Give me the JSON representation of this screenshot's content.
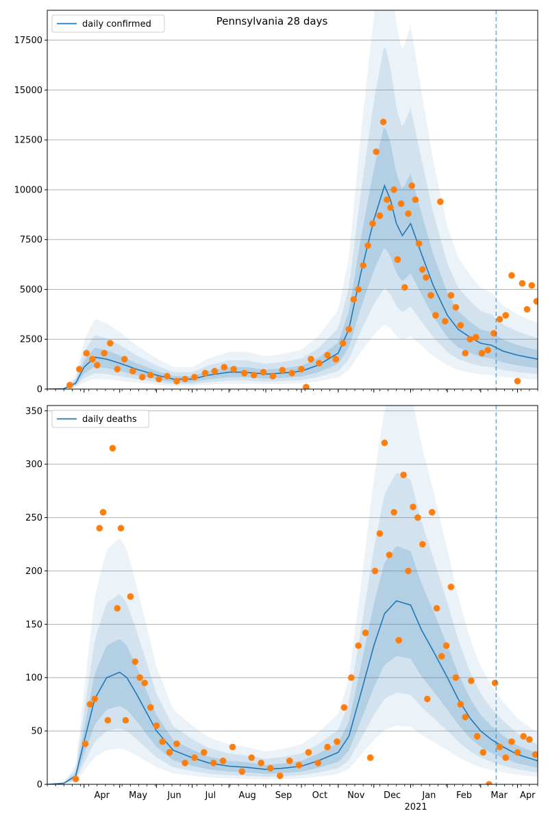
{
  "figure": {
    "title": "Pennsylvania 28 days",
    "year_label": "2021",
    "month_labels": [
      "Apr",
      "May",
      "Jun",
      "Jul",
      "Aug",
      "Sep",
      "Oct",
      "Nov",
      "Dec",
      "Jan",
      "Feb",
      "Mar",
      "Apr"
    ]
  },
  "colors": {
    "line": "#1f77b4",
    "points": "#ff7f0e",
    "band": "#1f77b4",
    "grid": "#b0b0b0",
    "vline": "#1f77b4"
  },
  "chart_data": [
    {
      "type": "line",
      "legend": "daily confirmed",
      "legend_position": "top-left",
      "x_range": [
        "2020-03-01",
        "2021-04-18"
      ],
      "ylim": [
        0,
        19000
      ],
      "yticks": [
        0,
        2500,
        5000,
        7500,
        10000,
        12500,
        15000,
        17500
      ],
      "grid": "y",
      "vline_date": "2021-03-14",
      "line": {
        "x": [
          "2020-03-01",
          "2020-03-15",
          "2020-03-25",
          "2020-04-01",
          "2020-04-10",
          "2020-04-20",
          "2020-05-01",
          "2020-05-15",
          "2020-06-01",
          "2020-06-15",
          "2020-07-01",
          "2020-07-15",
          "2020-08-01",
          "2020-08-15",
          "2020-09-01",
          "2020-09-15",
          "2020-10-01",
          "2020-10-15",
          "2020-11-01",
          "2020-11-10",
          "2020-11-20",
          "2020-12-01",
          "2020-12-10",
          "2020-12-15",
          "2020-12-20",
          "2020-12-25",
          "2021-01-01",
          "2021-01-10",
          "2021-01-20",
          "2021-02-01",
          "2021-02-10",
          "2021-02-20",
          "2021-03-01",
          "2021-03-10",
          "2021-03-20",
          "2021-04-01",
          "2021-04-18"
        ],
        "y": [
          0,
          20,
          300,
          1100,
          1600,
          1500,
          1300,
          1000,
          700,
          500,
          500,
          700,
          850,
          850,
          750,
          800,
          900,
          1200,
          1800,
          3000,
          5800,
          8500,
          10200,
          9500,
          8300,
          7700,
          8300,
          6800,
          5200,
          3700,
          3000,
          2600,
          2300,
          2200,
          1900,
          1700,
          1500
        ]
      },
      "points": {
        "x": [
          "2020-03-20",
          "2020-03-28",
          "2020-04-03",
          "2020-04-08",
          "2020-04-12",
          "2020-04-18",
          "2020-04-23",
          "2020-04-29",
          "2020-05-05",
          "2020-05-12",
          "2020-05-20",
          "2020-05-27",
          "2020-06-03",
          "2020-06-10",
          "2020-06-18",
          "2020-06-25",
          "2020-07-03",
          "2020-07-12",
          "2020-07-20",
          "2020-07-28",
          "2020-08-05",
          "2020-08-14",
          "2020-08-22",
          "2020-08-30",
          "2020-09-07",
          "2020-09-15",
          "2020-09-23",
          "2020-10-01",
          "2020-10-05",
          "2020-10-09",
          "2020-10-16",
          "2020-10-23",
          "2020-10-30",
          "2020-11-05",
          "2020-11-10",
          "2020-11-14",
          "2020-11-18",
          "2020-11-22",
          "2020-11-26",
          "2020-11-30",
          "2020-12-03",
          "2020-12-06",
          "2020-12-09",
          "2020-12-12",
          "2020-12-15",
          "2020-12-18",
          "2020-12-21",
          "2020-12-24",
          "2020-12-27",
          "2020-12-30",
          "2021-01-02",
          "2021-01-05",
          "2021-01-08",
          "2021-01-11",
          "2021-01-14",
          "2021-01-18",
          "2021-01-22",
          "2021-01-26",
          "2021-01-30",
          "2021-02-04",
          "2021-02-08",
          "2021-02-12",
          "2021-02-16",
          "2021-02-20",
          "2021-02-25",
          "2021-03-02",
          "2021-03-07",
          "2021-03-12",
          "2021-03-17",
          "2021-03-22",
          "2021-03-27",
          "2021-04-01",
          "2021-04-05",
          "2021-04-09",
          "2021-04-13",
          "2021-04-17"
        ],
        "y": [
          200,
          1000,
          1800,
          1500,
          1200,
          1800,
          2300,
          1000,
          1500,
          900,
          600,
          700,
          500,
          650,
          400,
          500,
          600,
          800,
          900,
          1100,
          1000,
          800,
          700,
          850,
          650,
          950,
          800,
          1000,
          100,
          1500,
          1300,
          1700,
          1500,
          2300,
          3000,
          4500,
          5000,
          6200,
          7200,
          8300,
          11900,
          8700,
          13400,
          9500,
          9100,
          10000,
          6500,
          9300,
          5100,
          8800,
          10200,
          9500,
          7300,
          6000,
          5600,
          4700,
          3700,
          9400,
          3400,
          4700,
          4100,
          3200,
          1800,
          2500,
          2600,
          1800,
          1950,
          2800,
          3500,
          3700,
          5700,
          400,
          5300,
          4000,
          5200,
          4400
        ]
      }
    },
    {
      "type": "line",
      "legend": "daily deaths",
      "legend_position": "top-left",
      "x_range": [
        "2020-03-01",
        "2021-04-18"
      ],
      "ylim": [
        0,
        355
      ],
      "yticks": [
        0,
        50,
        100,
        150,
        200,
        250,
        300,
        350
      ],
      "grid": "y",
      "vline_date": "2021-03-14",
      "line": {
        "x": [
          "2020-03-01",
          "2020-03-15",
          "2020-03-25",
          "2020-04-01",
          "2020-04-10",
          "2020-04-20",
          "2020-05-01",
          "2020-05-07",
          "2020-05-15",
          "2020-06-01",
          "2020-06-15",
          "2020-07-01",
          "2020-07-15",
          "2020-08-01",
          "2020-08-15",
          "2020-09-01",
          "2020-09-15",
          "2020-10-01",
          "2020-10-15",
          "2020-11-01",
          "2020-11-10",
          "2020-11-20",
          "2020-12-01",
          "2020-12-10",
          "2020-12-20",
          "2021-01-01",
          "2021-01-10",
          "2021-01-20",
          "2021-02-01",
          "2021-02-10",
          "2021-02-20",
          "2021-03-01",
          "2021-03-10",
          "2021-03-20",
          "2021-04-01",
          "2021-04-18"
        ],
        "y": [
          0,
          1,
          8,
          40,
          80,
          100,
          105,
          100,
          85,
          50,
          32,
          25,
          20,
          17,
          16,
          14,
          15,
          17,
          22,
          30,
          45,
          85,
          130,
          160,
          172,
          168,
          145,
          125,
          100,
          80,
          62,
          50,
          42,
          35,
          28,
          22
        ]
      },
      "points": {
        "x": [
          "2020-03-25",
          "2020-04-02",
          "2020-04-06",
          "2020-04-10",
          "2020-04-14",
          "2020-04-17",
          "2020-04-21",
          "2020-04-25",
          "2020-04-29",
          "2020-05-02",
          "2020-05-06",
          "2020-05-10",
          "2020-05-14",
          "2020-05-18",
          "2020-05-22",
          "2020-05-27",
          "2020-06-01",
          "2020-06-06",
          "2020-06-12",
          "2020-06-18",
          "2020-06-25",
          "2020-07-03",
          "2020-07-11",
          "2020-07-19",
          "2020-07-27",
          "2020-08-04",
          "2020-08-12",
          "2020-08-20",
          "2020-08-28",
          "2020-09-05",
          "2020-09-13",
          "2020-09-21",
          "2020-09-29",
          "2020-10-07",
          "2020-10-15",
          "2020-10-23",
          "2020-10-31",
          "2020-11-06",
          "2020-11-12",
          "2020-11-18",
          "2020-11-24",
          "2020-11-28",
          "2020-12-02",
          "2020-12-06",
          "2020-12-10",
          "2020-12-14",
          "2020-12-18",
          "2020-12-22",
          "2020-12-26",
          "2020-12-30",
          "2021-01-03",
          "2021-01-07",
          "2021-01-11",
          "2021-01-15",
          "2021-01-19",
          "2021-01-23",
          "2021-01-27",
          "2021-01-31",
          "2021-02-04",
          "2021-02-08",
          "2021-02-12",
          "2021-02-16",
          "2021-02-21",
          "2021-02-26",
          "2021-03-03",
          "2021-03-08",
          "2021-03-13",
          "2021-03-17",
          "2021-03-22",
          "2021-03-27",
          "2021-04-01",
          "2021-04-06",
          "2021-04-11",
          "2021-04-16"
        ],
        "y": [
          5,
          38,
          75,
          80,
          240,
          255,
          60,
          315,
          165,
          240,
          60,
          176,
          115,
          100,
          95,
          72,
          55,
          40,
          30,
          38,
          20,
          25,
          30,
          20,
          22,
          35,
          12,
          25,
          20,
          15,
          8,
          22,
          18,
          30,
          20,
          35,
          40,
          72,
          100,
          130,
          142,
          25,
          200,
          235,
          320,
          215,
          255,
          135,
          290,
          200,
          260,
          250,
          225,
          80,
          255,
          165,
          120,
          130,
          185,
          100,
          75,
          63,
          97,
          45,
          30,
          0,
          95,
          35,
          25,
          40,
          30,
          45,
          42,
          28
        ]
      }
    }
  ]
}
